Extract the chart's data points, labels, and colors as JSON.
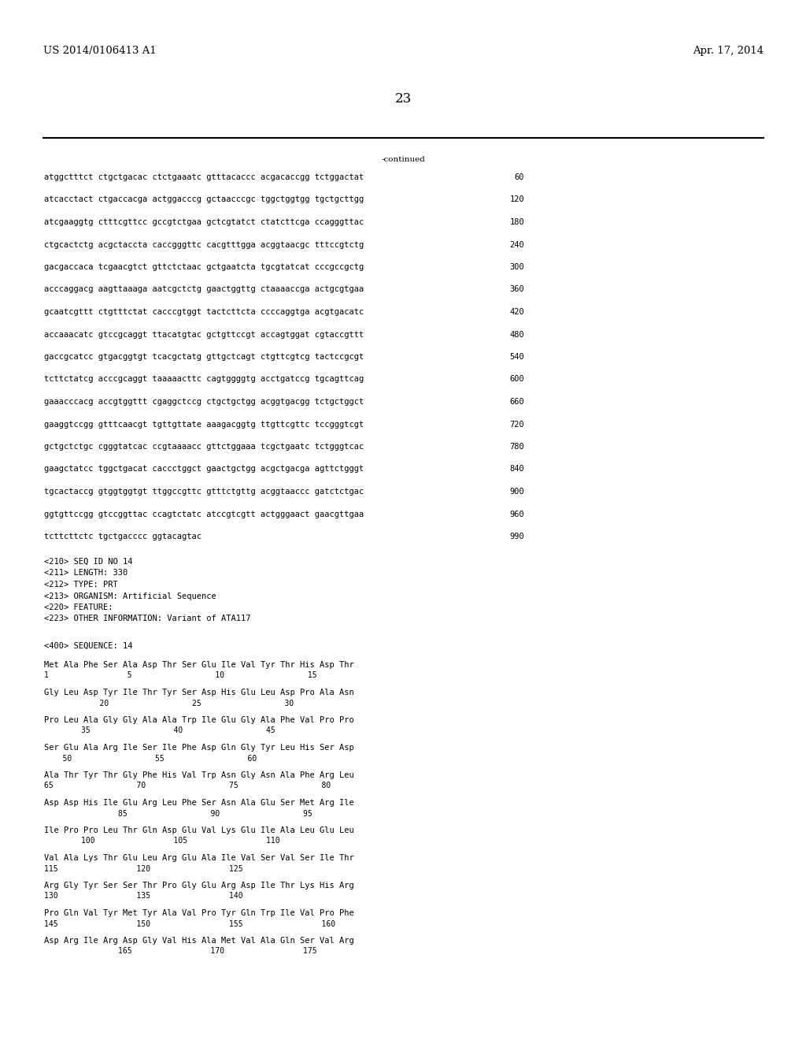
{
  "header_left": "US 2014/0106413 A1",
  "header_right": "Apr. 17, 2014",
  "page_number": "23",
  "continued_label": "-continued",
  "background_color": "#ffffff",
  "text_color": "#000000",
  "font_size_header": 9.5,
  "font_size_body": 7.5,
  "font_size_page": 12,
  "dna_lines": [
    [
      "atggctttct ctgctgacac ctctgaaatc gtttacaccc acgacaccgg tctggactat",
      "60"
    ],
    [
      "atcacctact ctgaccacga actggacccg gctaacccgc tggctggtgg tgctgcttgg",
      "120"
    ],
    [
      "atcgaaggtg ctttcgttcc gccgtctgaa gctcgtatct ctatcttcga ccagggttac",
      "180"
    ],
    [
      "ctgcactctg acgctaccta caccgggttc cacgtttgga acggtaacgc tttccgtctg",
      "240"
    ],
    [
      "gacgaccaca tcgaacgtct gttctctaac gctgaatcta tgcgtatcat cccgccgctg",
      "300"
    ],
    [
      "acccaggacg aagttaaaga aatcgctctg gaactggttg ctaaaaccga actgcgtgaa",
      "360"
    ],
    [
      "gcaatcgttt ctgtttctat cacccgtggt tactcttcta ccccaggtga acgtgacatc",
      "420"
    ],
    [
      "accaaacatc gtccgcaggt ttacatgtac gctgttccgt accagtggat cgtaccgttt",
      "480"
    ],
    [
      "gaccgcatcc gtgacggtgt tcacgctatg gttgctcagt ctgttcgtcg tactccgcgt",
      "540"
    ],
    [
      "tcttctatcg acccgcaggt taaaaacttc cagtggggtg acctgatccg tgcagttcag",
      "600"
    ],
    [
      "gaaacccacg accgtggttt cgaggctccg ctgctgctgg acggtgacgg tctgctggct",
      "660"
    ],
    [
      "gaaggtccgg gtttcaacgt tgttgttate aaagacggtg ttgttcgttc tccgggtcgt",
      "720"
    ],
    [
      "gctgctctgc cgggtatcac ccgtaaaacc gttctggaaa tcgctgaatc tctgggtcac",
      "780"
    ],
    [
      "gaagctatcc tggctgacat caccctggct gaactgctgg acgctgacga agttctgggt",
      "840"
    ],
    [
      "tgcactaccg gtggtggtgt ttggccgttc gtttctgttg acggtaaccc gatctctgac",
      "900"
    ],
    [
      "ggtgttccgg gtccggttac ccagtctatc atccgtcgtt actgggaact gaacgttgaa",
      "960"
    ],
    [
      "tcttcttctc tgctgacccc ggtacagtac",
      "990"
    ]
  ],
  "seq_info_lines": [
    "<210> SEQ ID NO 14",
    "<211> LENGTH: 330",
    "<212> TYPE: PRT",
    "<213> ORGANISM: Artificial Sequence",
    "<220> FEATURE:",
    "<223> OTHER INFORMATION: Variant of ATA117"
  ],
  "seq_400": "<400> SEQUENCE: 14",
  "protein_blocks": [
    {
      "seq": "Met Ala Phe Ser Ala Asp Thr Ser Glu Ile Val Tyr Thr His Asp Thr",
      "nums": "1                 5                  10                  15"
    },
    {
      "seq": "Gly Leu Asp Tyr Ile Thr Tyr Ser Asp His Glu Leu Asp Pro Ala Asn",
      "nums": "            20                  25                  30"
    },
    {
      "seq": "Pro Leu Ala Gly Gly Ala Ala Trp Ile Glu Gly Ala Phe Val Pro Pro",
      "nums": "        35                  40                  45"
    },
    {
      "seq": "Ser Glu Ala Arg Ile Ser Ile Phe Asp Gln Gly Tyr Leu His Ser Asp",
      "nums": "    50                  55                  60"
    },
    {
      "seq": "Ala Thr Tyr Thr Gly Phe His Val Trp Asn Gly Asn Ala Phe Arg Leu",
      "nums": "65                  70                  75                  80"
    },
    {
      "seq": "Asp Asp His Ile Glu Arg Leu Phe Ser Asn Ala Glu Ser Met Arg Ile",
      "nums": "                85                  90                  95"
    },
    {
      "seq": "Ile Pro Pro Leu Thr Gln Asp Glu Val Lys Glu Ile Ala Leu Glu Leu",
      "nums": "        100                 105                 110"
    },
    {
      "seq": "Val Ala Lys Thr Glu Leu Arg Glu Ala Ile Val Ser Val Ser Ile Thr",
      "nums": "115                 120                 125"
    },
    {
      "seq": "Arg Gly Tyr Ser Ser Thr Pro Gly Glu Arg Asp Ile Thr Lys His Arg",
      "nums": "130                 135                 140"
    },
    {
      "seq": "Pro Gln Val Tyr Met Tyr Ala Val Pro Tyr Gln Trp Ile Val Pro Phe",
      "nums": "145                 150                 155                 160"
    },
    {
      "seq": "Asp Arg Ile Arg Asp Gly Val His Ala Met Val Ala Gln Ser Val Arg",
      "nums": "                165                 170                 175"
    }
  ]
}
